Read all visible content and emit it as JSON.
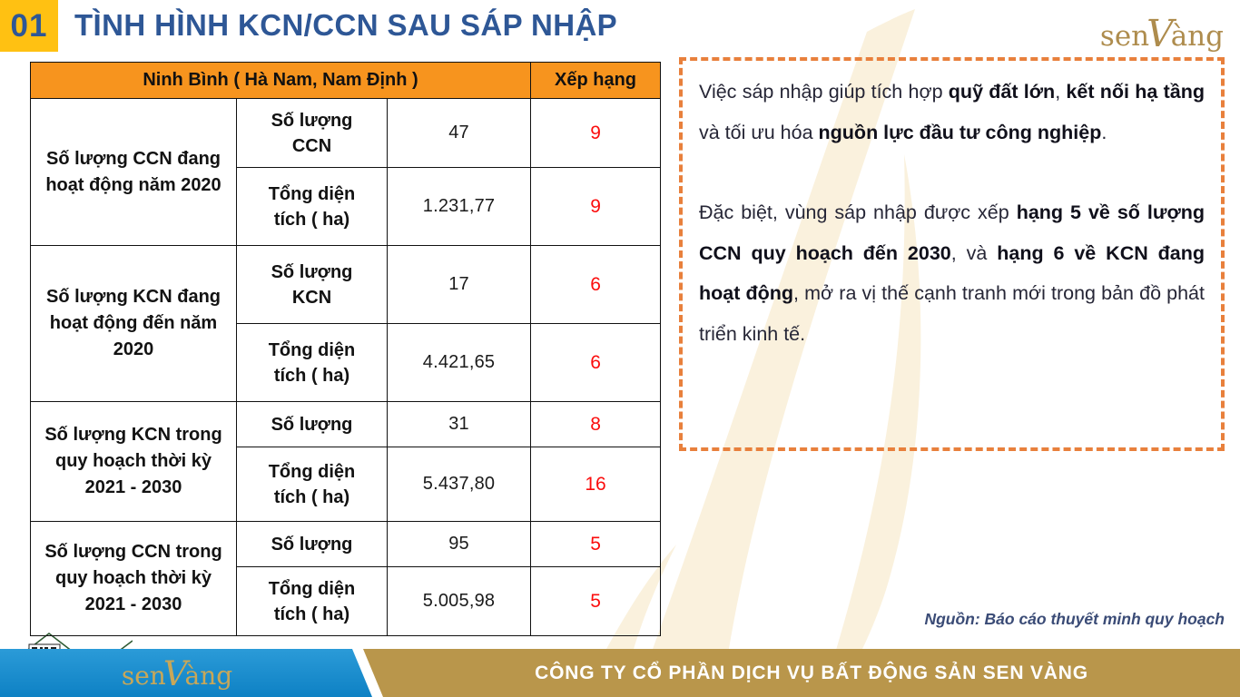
{
  "slide": {
    "number": "01",
    "title": "TÌNH HÌNH KCN/CCN SAU SÁP NHẬP"
  },
  "brand": {
    "logo_pre": "sen",
    "logo_v": "V",
    "logo_post": "àng",
    "gold_color": "#AE8C4D"
  },
  "table": {
    "header": {
      "region": "Ninh Bình ( Hà Nam, Nam Định )",
      "rank": "Xếp hạng"
    },
    "header_bg": "#F7941E",
    "rank_color": "#FB0D0D",
    "groups": [
      {
        "label": "Số lượng CCN đang hoạt động năm 2020",
        "rows": [
          {
            "metric": "Số lượng CCN",
            "value": "47",
            "rank": "9"
          },
          {
            "metric": "Tổng diện tích ( ha)",
            "value": "1.231,77",
            "rank": "9"
          }
        ]
      },
      {
        "label": "Số lượng KCN đang hoạt động đến năm 2020",
        "rows": [
          {
            "metric": "Số lượng KCN",
            "value": "17",
            "rank": "6"
          },
          {
            "metric": "Tổng diện tích ( ha)",
            "value": "4.421,65",
            "rank": "6"
          }
        ]
      },
      {
        "label": "Số lượng KCN trong quy hoạch thời kỳ 2021 - 2030",
        "rows": [
          {
            "metric": "Số lượng",
            "value": "31",
            "rank": "8"
          },
          {
            "metric": "Tổng diện tích ( ha)",
            "value": "5.437,80",
            "rank": "16"
          }
        ]
      },
      {
        "label": "Số lượng CCN trong quy hoạch thời kỳ 2021 - 2030",
        "rows": [
          {
            "metric": "Số lượng",
            "value": "95",
            "rank": "5"
          },
          {
            "metric": "Tổng diện tích ( ha)",
            "value": "5.005,98",
            "rank": "5"
          }
        ]
      }
    ]
  },
  "note_box": {
    "border_color": "#E8803C",
    "paragraphs": [
      [
        {
          "t": "Việc sáp nhập giúp tích hợp ",
          "b": false
        },
        {
          "t": "quỹ đất lớn",
          "b": true
        },
        {
          "t": ", ",
          "b": false
        },
        {
          "t": "kết nối hạ tầng",
          "b": true
        },
        {
          "t": " và tối ưu hóa ",
          "b": false
        },
        {
          "t": "nguồn lực đầu tư công nghiệp",
          "b": true
        },
        {
          "t": ".",
          "b": false
        }
      ],
      [
        {
          "t": "Đặc biệt, vùng sáp nhập được xếp ",
          "b": false
        },
        {
          "t": "hạng 5 về số lượng CCN quy hoạch đến 2030",
          "b": true
        },
        {
          "t": ", và ",
          "b": false
        },
        {
          "t": "hạng 6 về KCN đang hoạt động",
          "b": true
        },
        {
          "t": ", mở ra vị thế cạnh tranh mới trong bản đồ phát triển kinh tế.",
          "b": false
        }
      ]
    ]
  },
  "source": "Nguồn: Báo cáo thuyết minh quy hoạch",
  "footer": {
    "company": "CÔNG TY CỔ PHẦN DỊCH VỤ BẤT ĐỘNG SẢN SEN VÀNG",
    "blue_color": "#1489CB",
    "gold_color": "#B9964B"
  }
}
